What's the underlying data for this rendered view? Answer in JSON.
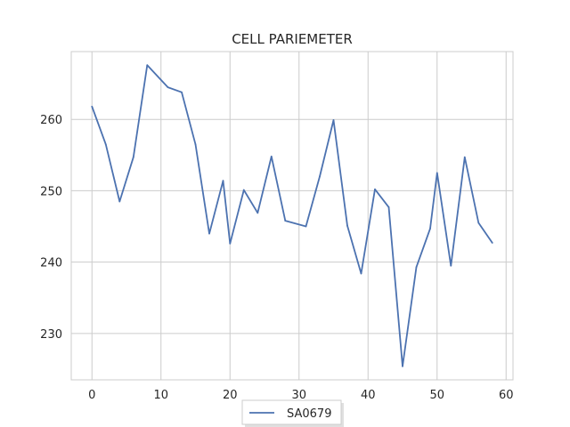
{
  "chart_data": {
    "type": "line",
    "title": "CELL PARIEMETER",
    "xlabel": "",
    "ylabel": "",
    "xlim": [
      -3,
      61
    ],
    "ylim": [
      223.5,
      269.5
    ],
    "xticks": [
      0,
      10,
      20,
      30,
      40,
      50,
      60
    ],
    "yticks": [
      230,
      240,
      250,
      260
    ],
    "grid": true,
    "legend_position": "bottom-center",
    "series": [
      {
        "name": "SA0679",
        "color": "#4c72b0",
        "x": [
          0,
          2,
          4,
          6,
          8,
          11,
          13,
          15,
          17,
          19,
          20,
          22,
          24,
          26,
          28,
          31,
          33,
          35,
          37,
          39,
          41,
          43,
          45,
          47,
          49,
          50,
          52,
          54,
          56,
          58
        ],
        "y": [
          261.8,
          256.5,
          248.5,
          254.7,
          267.6,
          264.5,
          263.8,
          256.5,
          244.0,
          251.4,
          242.6,
          250.1,
          246.9,
          254.8,
          245.8,
          245.0,
          252.0,
          259.9,
          245.1,
          238.4,
          250.2,
          247.7,
          225.4,
          239.3,
          244.7,
          252.5,
          239.5,
          254.7,
          245.5,
          242.7
        ]
      }
    ]
  }
}
